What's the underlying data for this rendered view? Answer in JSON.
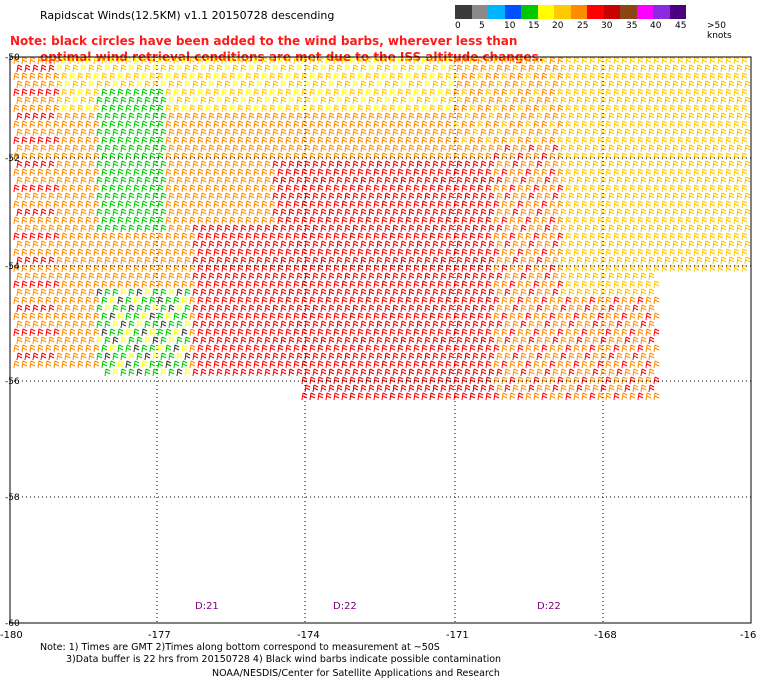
{
  "header": {
    "title": "Rapidscat Winds(12.5KM) v1.1 20150728 descending",
    "note_line1": "Note: black circles have been added to the wind barbs, wherever less than",
    "note_line2": "optimal wind retrieval conditions are met due to the ISS altitude changes."
  },
  "legend": {
    "colors": [
      "#3a3a3a",
      "#8a8a8a",
      "#00b4ff",
      "#0050ff",
      "#00c800",
      "#ffff00",
      "#ffc800",
      "#ff8c00",
      "#ff0000",
      "#c80000",
      "#8b4513",
      "#ff00ff",
      "#8a2be2",
      "#4b0082"
    ],
    "labels": [
      "0",
      "5",
      "10",
      "15",
      "20",
      "25",
      "30",
      "35",
      "40",
      "45",
      ">50 knots"
    ]
  },
  "map": {
    "lat_labels": [
      "-50",
      "-52",
      "-54",
      "-56",
      "-58",
      "-60"
    ],
    "lon_labels": [
      "-180",
      "-177",
      "-174",
      "-171",
      "-168",
      "-16"
    ],
    "time_labels": [
      "D:21",
      "D:22",
      "D:22"
    ]
  },
  "footer": {
    "line1": "Note: 1) Times are GMT 2)Times along bottom correspond to measurement at ~50S",
    "line2": "3)Data buffer is 22 hrs from 20150728 4) Black wind barbs indicate possible contamination",
    "line3": "NOAA/NESDIS/Center for Satellite Applications and Research"
  }
}
